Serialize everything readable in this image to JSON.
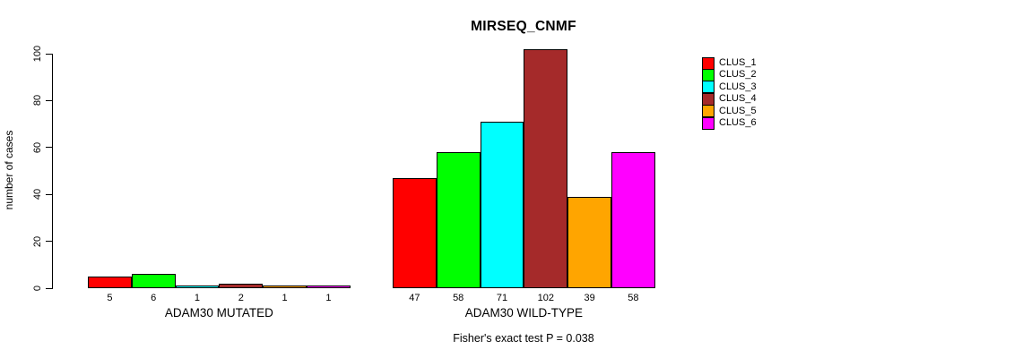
{
  "chart_data": {
    "type": "bar",
    "title": "MIRSEQ_CNMF",
    "ylabel": "number of cases",
    "xlabel": "",
    "ylim": [
      0,
      100
    ],
    "yticks": [
      0,
      20,
      40,
      60,
      80,
      100
    ],
    "grid": false,
    "legend_position": "right",
    "series": [
      {
        "name": "CLUS_1",
        "color": "#FF0000"
      },
      {
        "name": "CLUS_2",
        "color": "#00FF00"
      },
      {
        "name": "CLUS_3",
        "color": "#00FFFF"
      },
      {
        "name": "CLUS_4",
        "color": "#A52A2A"
      },
      {
        "name": "CLUS_5",
        "color": "#FFA500"
      },
      {
        "name": "CLUS_6",
        "color": "#FF00FF"
      }
    ],
    "groups": [
      {
        "label": "ADAM30 MUTATED",
        "values": [
          5,
          6,
          1,
          2,
          1,
          1
        ]
      },
      {
        "label": "ADAM30 WILD-TYPE",
        "values": [
          47,
          58,
          71,
          102,
          39,
          58
        ]
      }
    ],
    "caption": "Fisher's exact test P = 0.038"
  }
}
